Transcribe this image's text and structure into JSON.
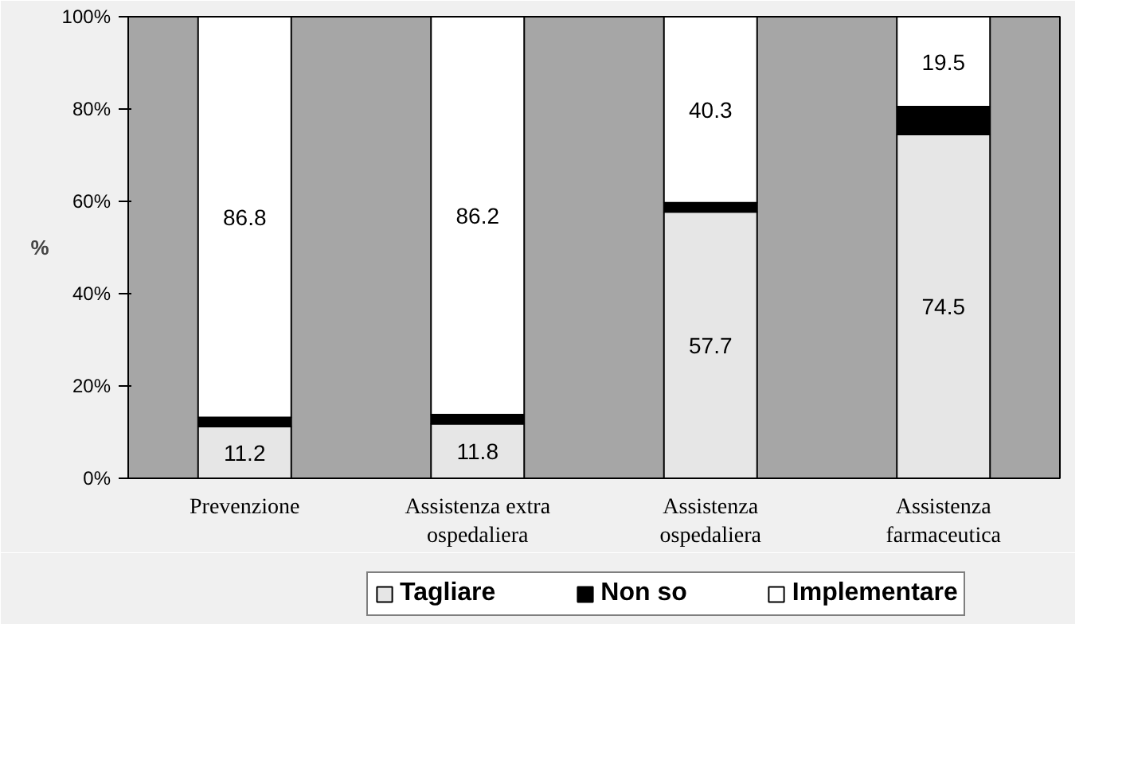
{
  "chart_data": {
    "type": "bar",
    "stacked": true,
    "ylabel": "%",
    "categories": [
      "Prevenzione",
      "Assistenza extra\nospedaliera",
      "Assistenza\nospedaliera",
      "Assistenza\nfarmaceutica"
    ],
    "series": [
      {
        "name": "Tagliare",
        "color": "#e6e6e6",
        "values": [
          11.2,
          11.8,
          57.7,
          74.5
        ],
        "value_labels": [
          "11.2",
          "11.8",
          "57.7",
          "74.5"
        ]
      },
      {
        "name": "Non so",
        "color": "#000000",
        "values": [
          2.0,
          2.0,
          2.0,
          6.0
        ],
        "value_labels": [
          null,
          null,
          null,
          null
        ]
      },
      {
        "name": "Implementare",
        "color": "#ffffff",
        "values": [
          86.8,
          86.2,
          40.3,
          19.5
        ],
        "value_labels": [
          "86.8",
          "86.2",
          "40.3",
          "19.5"
        ]
      }
    ],
    "ylim": [
      0,
      100
    ],
    "yticks": [
      {
        "value": 0,
        "label": "0%"
      },
      {
        "value": 20,
        "label": "20%"
      },
      {
        "value": 40,
        "label": "40%"
      },
      {
        "value": 60,
        "label": "60%"
      },
      {
        "value": 80,
        "label": "80%"
      },
      {
        "value": 100,
        "label": "100%"
      }
    ],
    "grid": false,
    "legend": "bottom"
  }
}
